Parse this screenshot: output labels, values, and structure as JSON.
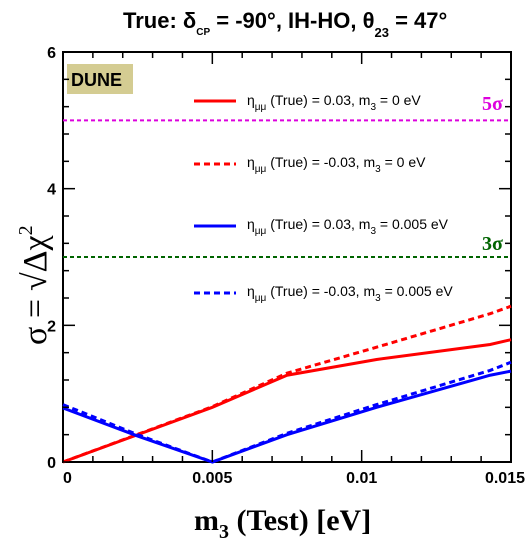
{
  "title": {
    "prefix": "True: ",
    "delta": "δ",
    "delta_sub": "CP",
    "delta_val": " = -90°, IH-HO, ",
    "theta": "θ",
    "theta_sub": "23",
    "theta_val": " = 47°"
  },
  "badge": "DUNE",
  "axes": {
    "ylabel": "σ =",
    "ylabel_sqrt": "√",
    "ylabel_body": "Δχ",
    "ylabel_sup": "2",
    "xlabel_m": "m",
    "xlabel_sub": "3",
    "xlabel_rest": " (Test) [eV]"
  },
  "ticks": {
    "x": [
      "0",
      "0.005",
      "0.01",
      "0.015"
    ],
    "y": [
      "0",
      "2",
      "4",
      "6"
    ]
  },
  "legend": [
    {
      "eta": "η",
      "sub": "μμ",
      "a": " (True) = 0.03, m",
      "m_sub": "3",
      "b": " = 0 eV"
    },
    {
      "eta": "η",
      "sub": "μμ",
      "a": " (True) = -0.03, m",
      "m_sub": "3",
      "b": " = 0 eV"
    },
    {
      "eta": "η",
      "sub": "μμ",
      "a": " (True) = 0.03, m",
      "m_sub": "3",
      "b": " = 0.005 eV"
    },
    {
      "eta": "η",
      "sub": "μμ",
      "a": " (True) = -0.03, m",
      "m_sub": "3",
      "b": " = 0.005 eV"
    }
  ],
  "sigma_labels": {
    "five": {
      "num": "5",
      "sym": "σ"
    },
    "three": {
      "num": "3",
      "sym": "σ"
    }
  },
  "colors": {
    "red": "#ff0000",
    "blue": "#0000ff",
    "magenta": "#dd00dd",
    "green": "#006400",
    "badge_bg": "#d4cc92"
  },
  "chart_data": {
    "type": "line",
    "xlim": [
      0,
      0.015
    ],
    "ylim": [
      0,
      6
    ],
    "reference_lines": [
      {
        "y": 5,
        "label": "5σ",
        "color": "#dd00dd",
        "style": "dashed"
      },
      {
        "y": 3,
        "label": "3σ",
        "color": "#006400",
        "style": "dashed"
      }
    ],
    "series": [
      {
        "name": "ημμ (True) = 0.03, m3 = 0 eV",
        "color": "#ff0000",
        "style": "solid",
        "x": [
          0,
          0.005,
          0.0075,
          0.0105,
          0.0143,
          0.015
        ],
        "y": [
          0,
          0.8,
          1.27,
          1.5,
          1.72,
          1.79
        ]
      },
      {
        "name": "ημμ (True) = -0.03, m3 = 0 eV",
        "color": "#ff0000",
        "style": "dashed",
        "x": [
          0,
          0.005,
          0.0075,
          0.0105,
          0.0143,
          0.015
        ],
        "y": [
          0,
          0.81,
          1.3,
          1.68,
          2.17,
          2.28
        ]
      },
      {
        "name": "ημμ (True) = 0.03, m3 = 0.005 eV",
        "color": "#0000ff",
        "style": "solid",
        "x": [
          0,
          0.0025,
          0.005,
          0.0075,
          0.0105,
          0.0143,
          0.015
        ],
        "y": [
          0.79,
          0.38,
          0.0,
          0.4,
          0.8,
          1.27,
          1.33
        ]
      },
      {
        "name": "ημμ (True) = -0.03, m3 = 0.005 eV",
        "color": "#0000ff",
        "style": "dashed",
        "x": [
          0,
          0.0025,
          0.005,
          0.0075,
          0.0105,
          0.0143,
          0.015
        ],
        "y": [
          0.84,
          0.4,
          0.0,
          0.42,
          0.84,
          1.34,
          1.46
        ]
      }
    ]
  }
}
